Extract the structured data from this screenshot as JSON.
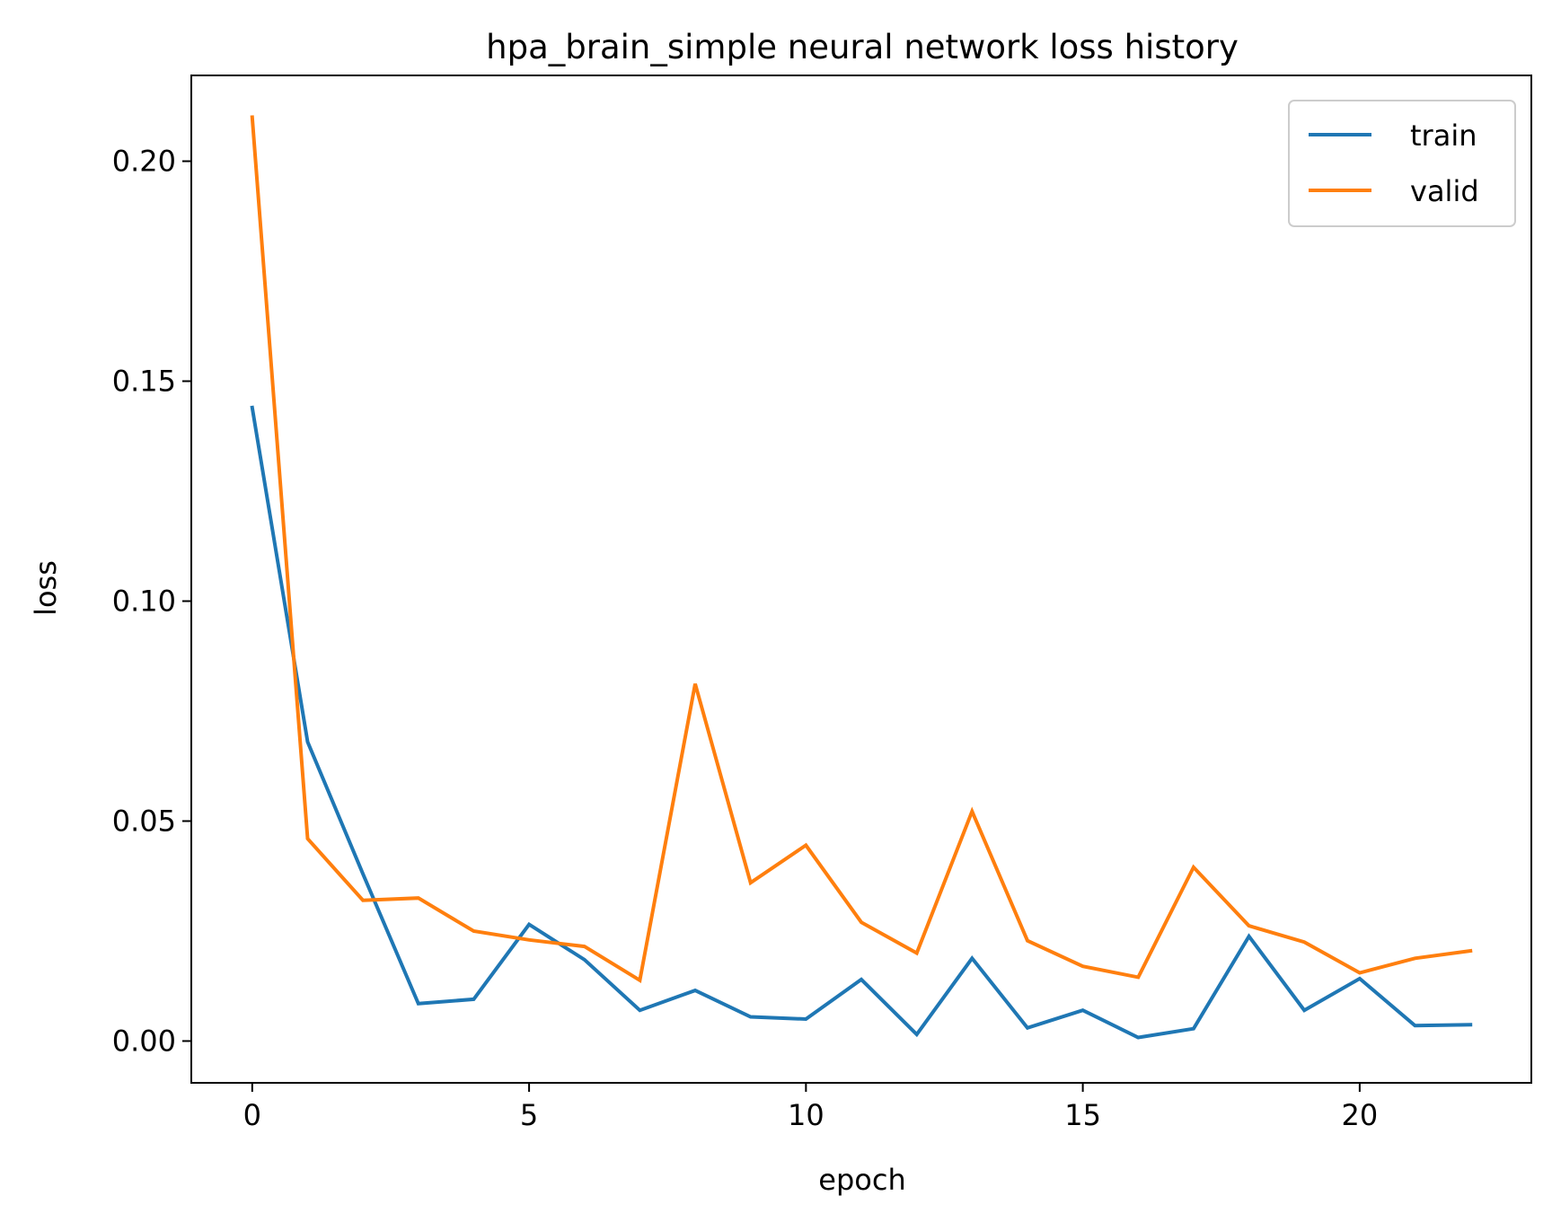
{
  "chart_data": {
    "type": "line",
    "title": "hpa_brain_simple neural network loss history",
    "xlabel": "epoch",
    "ylabel": "loss",
    "xlim": [
      -1.1,
      23.1
    ],
    "ylim": [
      -0.0095,
      0.2195
    ],
    "x_ticks": [
      0,
      5,
      10,
      15,
      20
    ],
    "x_tick_labels": [
      "0",
      "5",
      "10",
      "15",
      "20"
    ],
    "y_ticks": [
      0.0,
      0.05,
      0.1,
      0.15,
      0.2
    ],
    "y_tick_labels": [
      "0.00",
      "0.05",
      "0.10",
      "0.15",
      "0.20"
    ],
    "grid": false,
    "legend_position": "top-right",
    "x": [
      0,
      1,
      2,
      3,
      4,
      5,
      6,
      7,
      8,
      9,
      10,
      11,
      12,
      13,
      14,
      15,
      16,
      17,
      18,
      19,
      20,
      21,
      22
    ],
    "series": [
      {
        "name": "train",
        "color": "#1f77b4",
        "values": [
          0.144,
          0.068,
          0.038,
          0.0085,
          0.0095,
          0.0265,
          0.0185,
          0.007,
          0.0115,
          0.0055,
          0.005,
          0.014,
          0.0015,
          0.0188,
          0.003,
          0.007,
          0.0008,
          0.0028,
          0.0238,
          0.007,
          0.0142,
          0.0035,
          0.0037
        ]
      },
      {
        "name": "valid",
        "color": "#ff7f0e",
        "values": [
          0.21,
          0.046,
          0.032,
          0.0325,
          0.025,
          0.023,
          0.0215,
          0.0138,
          0.0812,
          0.036,
          0.0445,
          0.027,
          0.02,
          0.0522,
          0.0228,
          0.017,
          0.0145,
          0.0395,
          0.0262,
          0.0225,
          0.0155,
          0.0188,
          0.0205
        ]
      }
    ]
  }
}
